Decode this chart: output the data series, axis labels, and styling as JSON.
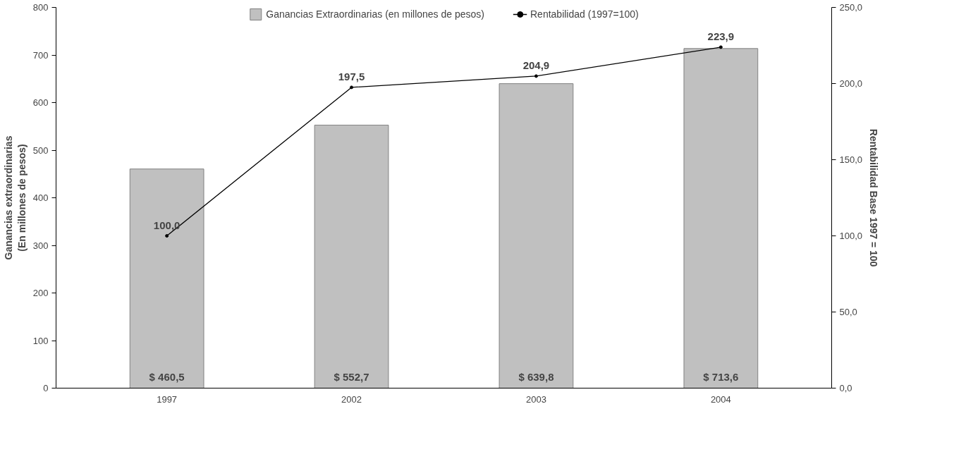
{
  "chart_data": {
    "type": "bar",
    "categories": [
      "1997",
      "2002",
      "2003",
      "2004"
    ],
    "ylabel": "Ganancias extraordinarias\n(En millones de pesos)",
    "y2label": "Rentabilidad Base 1997 = 100",
    "ylim": [
      0,
      800
    ],
    "yticks": [
      0,
      100,
      200,
      300,
      400,
      500,
      600,
      700,
      800
    ],
    "y2lim": [
      0,
      250
    ],
    "y2ticks": [
      {
        "value": 0,
        "label": "0,0"
      },
      {
        "value": 50,
        "label": "50,0"
      },
      {
        "value": 100,
        "label": "100,0"
      },
      {
        "value": 150,
        "label": "150,0"
      },
      {
        "value": 200,
        "label": "200,0"
      },
      {
        "value": 250,
        "label": "250,0"
      }
    ],
    "grid": false,
    "legend": "top",
    "series": [
      {
        "name": "Ganancias Extraordinarias (en millones de pesos)",
        "color": "#c0c0c0",
        "values": [
          460.5,
          552.7,
          639.8,
          713.6
        ],
        "value_labels": [
          "$ 460,5",
          "$ 552,7",
          "$ 639,8",
          "$ 713,6"
        ]
      },
      {
        "name": "Rentabilidad (1997=100)",
        "type": "line",
        "axis": "y2",
        "color": "#000000",
        "marker": "circle",
        "line_style": "solid",
        "values": [
          100.0,
          197.5,
          204.9,
          223.9
        ],
        "value_labels": [
          "100,0",
          "197,5",
          "204,9",
          "223,9"
        ]
      }
    ]
  }
}
